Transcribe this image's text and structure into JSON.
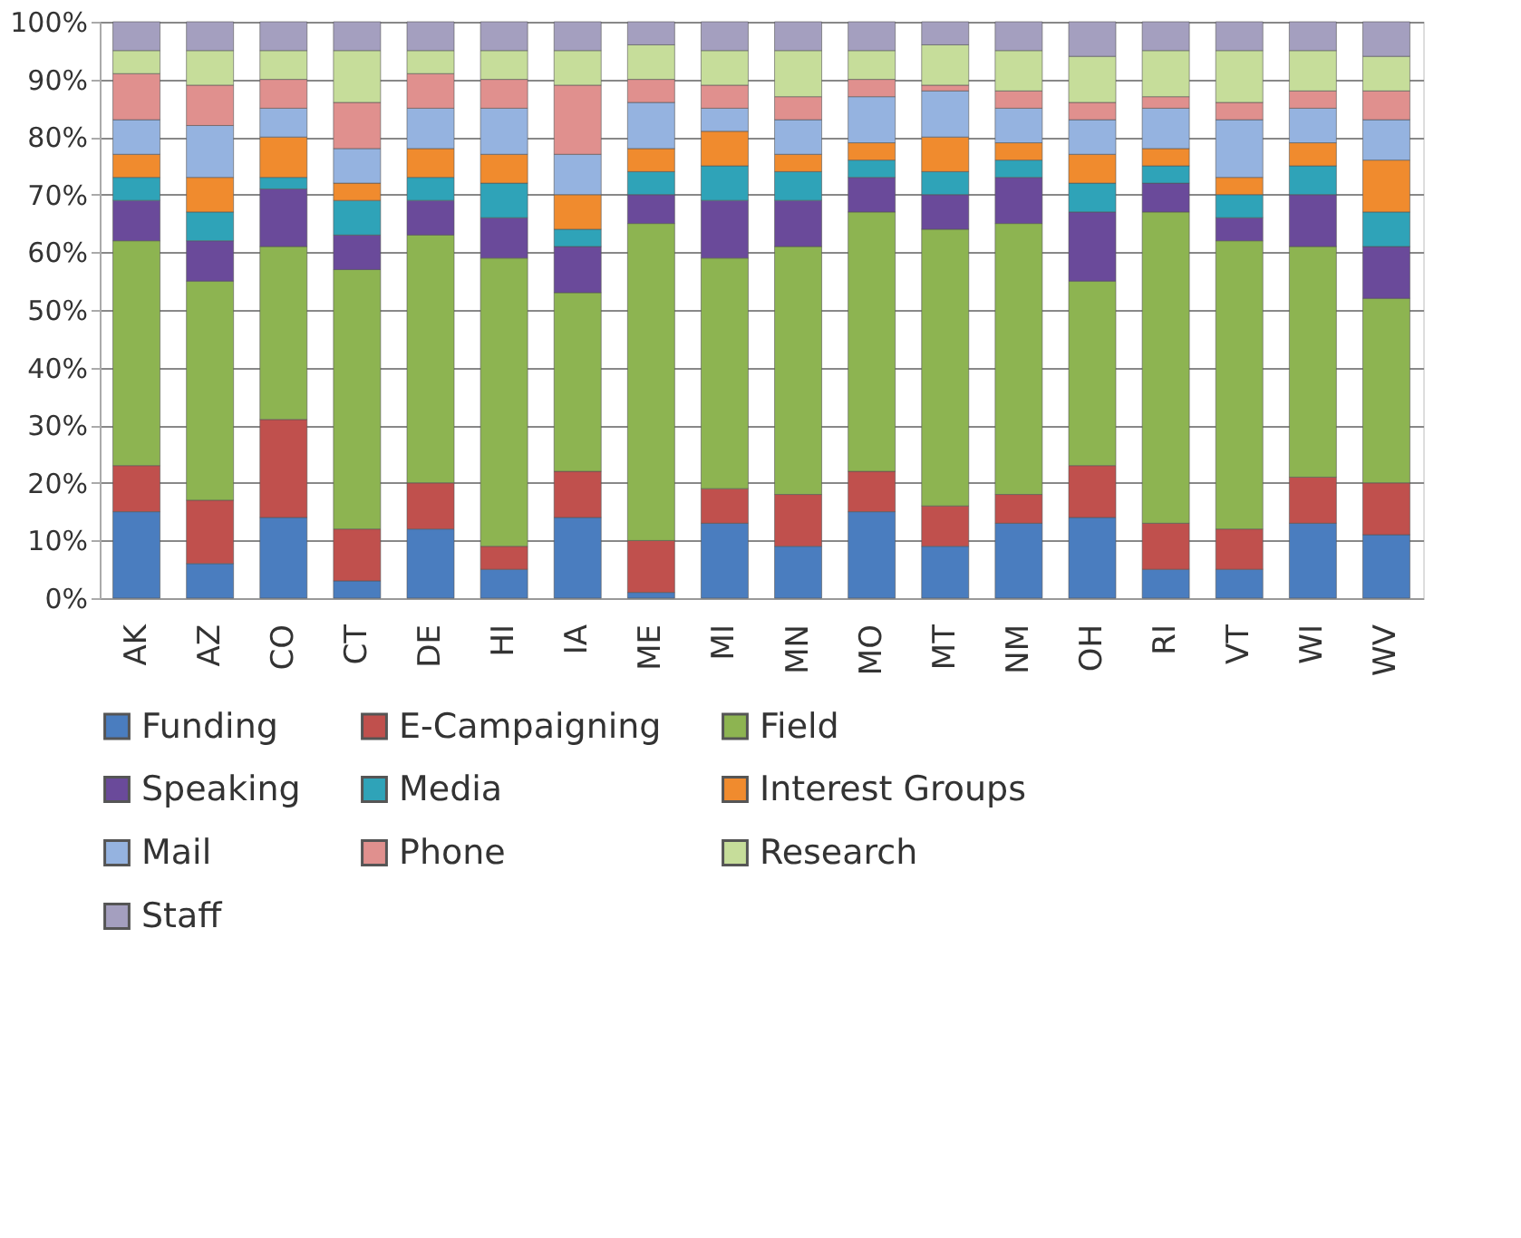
{
  "chart_data": {
    "type": "bar",
    "stacked": true,
    "categories": [
      "AK",
      "AZ",
      "CO",
      "CT",
      "DE",
      "HI",
      "IA",
      "ME",
      "MI",
      "MN",
      "MO",
      "MT",
      "NM",
      "OH",
      "RI",
      "VT",
      "WI",
      "WV"
    ],
    "series": [
      {
        "name": "Funding",
        "color": "#4a7dbf",
        "values": [
          15,
          6,
          14,
          3,
          12,
          5,
          14,
          1,
          13,
          9,
          15,
          9,
          13,
          14,
          5,
          5,
          13,
          11
        ]
      },
      {
        "name": "E-Campaigning",
        "color": "#c0504d",
        "values": [
          8,
          11,
          17,
          9,
          8,
          4,
          8,
          9,
          6,
          9,
          7,
          7,
          5,
          9,
          8,
          7,
          8,
          9
        ]
      },
      {
        "name": "Field",
        "color": "#8db451",
        "values": [
          39,
          38,
          30,
          45,
          43,
          50,
          31,
          55,
          40,
          43,
          45,
          48,
          47,
          32,
          54,
          50,
          40,
          32
        ]
      },
      {
        "name": "Speaking",
        "color": "#6a4a9a",
        "values": [
          7,
          7,
          10,
          6,
          6,
          7,
          8,
          5,
          10,
          8,
          6,
          6,
          8,
          12,
          5,
          4,
          9,
          9
        ]
      },
      {
        "name": "Media",
        "color": "#2fa3b8",
        "values": [
          4,
          5,
          2,
          6,
          4,
          6,
          3,
          4,
          6,
          5,
          3,
          4,
          3,
          5,
          3,
          4,
          5,
          6
        ]
      },
      {
        "name": "Interest Groups",
        "color": "#f08b2e",
        "values": [
          4,
          6,
          7,
          3,
          5,
          5,
          6,
          4,
          6,
          3,
          3,
          6,
          3,
          5,
          3,
          3,
          4,
          9
        ]
      },
      {
        "name": "Mail",
        "color": "#95b3e0",
        "values": [
          6,
          9,
          5,
          6,
          7,
          8,
          7,
          8,
          4,
          6,
          8,
          8,
          6,
          6,
          7,
          10,
          6,
          7
        ]
      },
      {
        "name": "Phone",
        "color": "#e0908e",
        "values": [
          8,
          7,
          5,
          8,
          6,
          5,
          12,
          4,
          4,
          4,
          3,
          1,
          3,
          3,
          2,
          3,
          3,
          5
        ]
      },
      {
        "name": "Research",
        "color": "#c6dd9a",
        "values": [
          4,
          6,
          5,
          9,
          4,
          5,
          6,
          6,
          6,
          8,
          5,
          7,
          7,
          8,
          8,
          9,
          7,
          6
        ]
      },
      {
        "name": "Staff",
        "color": "#a49fbf",
        "values": [
          5,
          5,
          5,
          5,
          5,
          5,
          5,
          4,
          5,
          5,
          5,
          4,
          5,
          6,
          5,
          5,
          5,
          6
        ]
      }
    ],
    "ylim": [
      0,
      100
    ],
    "yticks": [
      {
        "value": 0,
        "label": "0%"
      },
      {
        "value": 10,
        "label": "10%"
      },
      {
        "value": 20,
        "label": "20%"
      },
      {
        "value": 30,
        "label": "30%"
      },
      {
        "value": 40,
        "label": "40%"
      },
      {
        "value": 50,
        "label": "50%"
      },
      {
        "value": 60,
        "label": "60%"
      },
      {
        "value": 70,
        "label": "70%"
      },
      {
        "value": 80,
        "label": "80%"
      },
      {
        "value": 90,
        "label": "90%"
      },
      {
        "value": 100,
        "label": "100%"
      }
    ],
    "grid": "y",
    "legend": "bottom"
  }
}
